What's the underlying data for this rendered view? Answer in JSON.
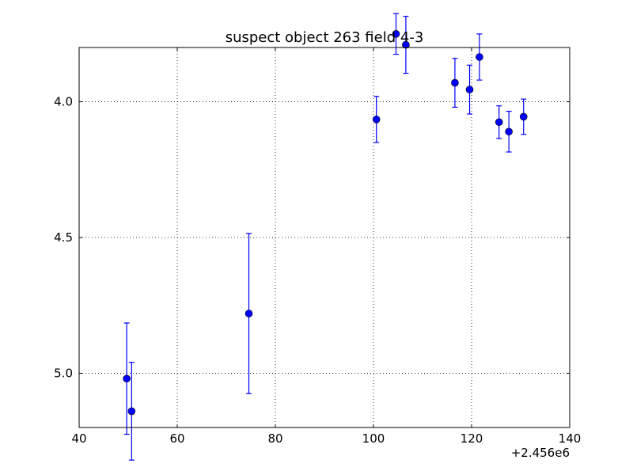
{
  "chart_data": {
    "type": "scatter",
    "title": "suspect object 263 field 4-3",
    "xlabel": "",
    "ylabel": "",
    "x_offset_label": "+2.456e6",
    "xlim": [
      2456040,
      2456140
    ],
    "ylim": [
      5.2,
      3.8
    ],
    "y_inverted": true,
    "grid": true,
    "marker_color": "#0000ff",
    "x_ticks": [
      2456040,
      2456060,
      2456080,
      2456100,
      2456120,
      2456140
    ],
    "x_tick_labels": [
      "40",
      "60",
      "80",
      "100",
      "120",
      "140"
    ],
    "y_ticks": [
      4.0,
      4.5,
      5.0
    ],
    "y_tick_labels": [
      "4.0",
      "4.5",
      "5.0"
    ],
    "points": [
      {
        "x": 2456049.7,
        "y": 5.02,
        "yerr": 0.205
      },
      {
        "x": 2456050.7,
        "y": 5.14,
        "yerr": 0.18
      },
      {
        "x": 2456074.6,
        "y": 4.78,
        "yerr": 0.295
      },
      {
        "x": 2456100.6,
        "y": 4.065,
        "yerr": 0.085
      },
      {
        "x": 2456104.6,
        "y": 3.75,
        "yerr": 0.075
      },
      {
        "x": 2456106.6,
        "y": 3.79,
        "yerr": 0.105
      },
      {
        "x": 2456116.6,
        "y": 3.93,
        "yerr": 0.09
      },
      {
        "x": 2456119.6,
        "y": 3.955,
        "yerr": 0.09
      },
      {
        "x": 2456121.6,
        "y": 3.835,
        "yerr": 0.085
      },
      {
        "x": 2456125.6,
        "y": 4.075,
        "yerr": 0.06
      },
      {
        "x": 2456127.6,
        "y": 4.11,
        "yerr": 0.075
      },
      {
        "x": 2456130.6,
        "y": 4.055,
        "yerr": 0.065
      }
    ]
  }
}
